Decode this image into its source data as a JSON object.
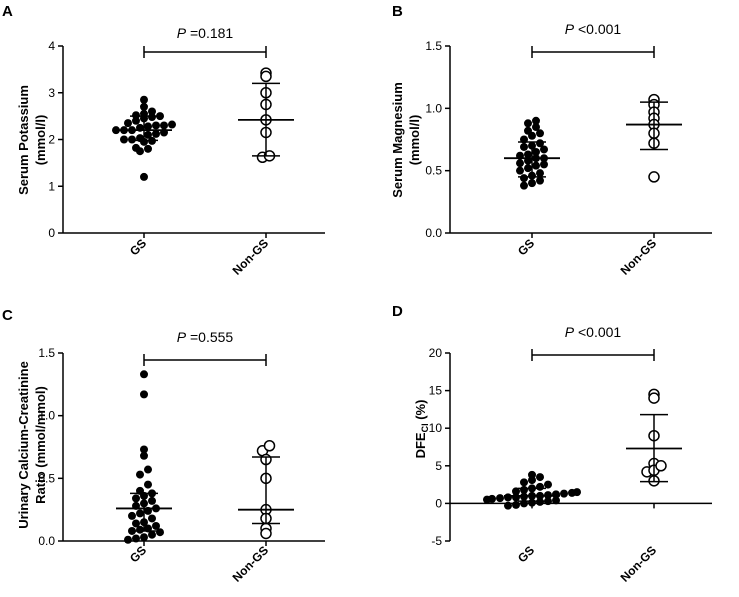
{
  "figure": {
    "panels": [
      "A",
      "B",
      "C",
      "D"
    ]
  },
  "chart_data": [
    {
      "panel": "A",
      "type": "scatter",
      "ylabel_lines": [
        "Serum Potassium",
        "(mmol/l)"
      ],
      "categories": [
        "GS",
        "Non-GS"
      ],
      "ylim": [
        0,
        4
      ],
      "yticks": [
        0,
        1,
        2,
        3,
        4
      ],
      "ytick_labels": [
        "0",
        "1",
        "2",
        "3",
        "4"
      ],
      "annotation": {
        "p_symbol": "P",
        "p_text": " =0.181"
      },
      "series": [
        {
          "name": "GS",
          "marker": "filled",
          "median": 2.2,
          "lower": 1.98,
          "upper": 2.5,
          "values": [
            1.2,
            1.75,
            1.8,
            1.82,
            1.95,
            1.97,
            2.0,
            2.0,
            2.03,
            2.1,
            2.12,
            2.15,
            2.2,
            2.2,
            2.2,
            2.25,
            2.28,
            2.3,
            2.3,
            2.32,
            2.35,
            2.4,
            2.45,
            2.48,
            2.5,
            2.52,
            2.55,
            2.6,
            2.7,
            2.85
          ]
        },
        {
          "name": "Non-GS",
          "marker": "open",
          "median": 2.42,
          "lower": 1.65,
          "upper": 3.2,
          "values": [
            1.62,
            1.65,
            2.15,
            2.42,
            2.75,
            3.0,
            3.35,
            3.42
          ]
        }
      ]
    },
    {
      "panel": "B",
      "type": "scatter",
      "ylabel_lines": [
        "Serum Magnesium",
        "(mmol/l)"
      ],
      "categories": [
        "GS",
        "Non-GS"
      ],
      "ylim": [
        0,
        1.5
      ],
      "yticks": [
        0,
        0.5,
        1.0,
        1.5
      ],
      "ytick_labels": [
        "0.0",
        "0.5",
        "1.0",
        "1.5"
      ],
      "annotation": {
        "p_symbol": "P",
        "p_text": " <0.001"
      },
      "series": [
        {
          "name": "GS",
          "marker": "filled",
          "median": 0.6,
          "lower": 0.45,
          "upper": 0.73,
          "values": [
            0.38,
            0.4,
            0.42,
            0.44,
            0.46,
            0.48,
            0.5,
            0.52,
            0.54,
            0.55,
            0.56,
            0.58,
            0.6,
            0.6,
            0.62,
            0.63,
            0.65,
            0.67,
            0.69,
            0.7,
            0.72,
            0.75,
            0.78,
            0.8,
            0.82,
            0.85,
            0.88,
            0.9
          ]
        },
        {
          "name": "Non-GS",
          "marker": "open",
          "median": 0.87,
          "lower": 0.67,
          "upper": 1.05,
          "values": [
            0.45,
            0.72,
            0.8,
            0.87,
            0.92,
            0.97,
            1.03,
            1.07
          ]
        }
      ]
    },
    {
      "panel": "C",
      "type": "scatter",
      "ylabel_lines": [
        "Urinary Calcium-Creatinine",
        "Ratio (mmol/mmol)"
      ],
      "categories": [
        "GS",
        "Non-GS"
      ],
      "ylim": [
        0,
        1.5
      ],
      "yticks": [
        0,
        0.5,
        1.0,
        1.5
      ],
      "ytick_labels": [
        "0.0",
        "0.5",
        "1.0",
        "1.5"
      ],
      "annotation": {
        "p_symbol": "P",
        "p_text": " =0.555"
      },
      "series": [
        {
          "name": "GS",
          "marker": "filled",
          "median": 0.26,
          "lower": 0.08,
          "upper": 0.38,
          "values": [
            0.01,
            0.02,
            0.03,
            0.05,
            0.07,
            0.08,
            0.09,
            0.1,
            0.12,
            0.14,
            0.15,
            0.18,
            0.2,
            0.22,
            0.24,
            0.26,
            0.28,
            0.3,
            0.32,
            0.34,
            0.36,
            0.38,
            0.4,
            0.45,
            0.53,
            0.57,
            0.68,
            0.73,
            1.17,
            1.33
          ]
        },
        {
          "name": "Non-GS",
          "marker": "open",
          "median": 0.25,
          "lower": 0.14,
          "upper": 0.67,
          "values": [
            0.06,
            0.1,
            0.18,
            0.25,
            0.5,
            0.65,
            0.72,
            0.76
          ]
        }
      ]
    },
    {
      "panel": "D",
      "type": "scatter",
      "ylabel_main": "DFE",
      "ylabel_sub": "Cl",
      "ylabel_tail": " (%)",
      "categories": [
        "GS",
        "Non-GS"
      ],
      "ylim": [
        -5,
        20
      ],
      "yticks": [
        -5,
        0,
        5,
        10,
        15,
        20
      ],
      "ytick_labels": [
        "-5",
        "0",
        "5",
        "10",
        "15",
        "20"
      ],
      "annotation": {
        "p_symbol": "P",
        "p_text": " <0.001"
      },
      "series": [
        {
          "name": "GS",
          "marker": "filled",
          "median": 1.0,
          "lower": 0.3,
          "upper": 2.0,
          "values": [
            -0.3,
            -0.2,
            0.0,
            0.1,
            0.2,
            0.3,
            0.4,
            0.5,
            0.6,
            0.7,
            0.8,
            0.8,
            0.9,
            1.0,
            1.0,
            1.1,
            1.2,
            1.3,
            1.4,
            1.5,
            1.6,
            1.8,
            2.0,
            2.2,
            2.5,
            2.8,
            3.1,
            3.5,
            3.8
          ]
        },
        {
          "name": "Non-GS",
          "marker": "open",
          "median": 7.3,
          "lower": 2.9,
          "upper": 11.8,
          "values": [
            3.0,
            4.2,
            4.4,
            5.0,
            5.3,
            9.0,
            14.0,
            14.5
          ]
        }
      ]
    }
  ]
}
